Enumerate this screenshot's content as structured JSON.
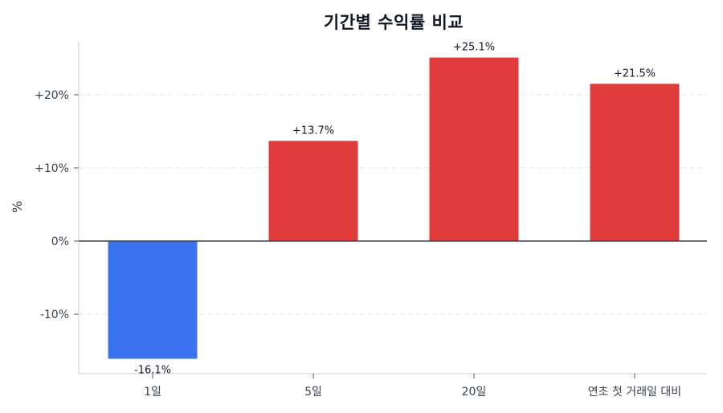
{
  "chart_data": {
    "type": "bar",
    "title": "기간별 수익률 비교",
    "xlabel": "",
    "ylabel": "%",
    "categories": [
      "1일",
      "5일",
      "20일",
      "연초 첫 거래일 대비"
    ],
    "values": [
      -16.1,
      13.7,
      25.1,
      21.5
    ],
    "value_labels": [
      "-16.1%",
      "+13.7%",
      "+25.1%",
      "+21.5%"
    ],
    "bar_colors": [
      "#3b73ee",
      "#e03b3b",
      "#e03b3b",
      "#e03b3b"
    ],
    "ylim": [
      -18.2,
      27.2
    ],
    "yticks": [
      -10,
      0,
      10,
      20
    ],
    "ytick_labels": [
      "-10%",
      "0%",
      "+10%",
      "+20%"
    ],
    "grid": "y-dashed",
    "zero_line": true,
    "legend": null
  },
  "colors": {
    "positive": "#e03b3b",
    "negative": "#3b73ee",
    "axis": "#d1d5db",
    "zero_line": "#374151",
    "grid": "#e5e7eb"
  }
}
